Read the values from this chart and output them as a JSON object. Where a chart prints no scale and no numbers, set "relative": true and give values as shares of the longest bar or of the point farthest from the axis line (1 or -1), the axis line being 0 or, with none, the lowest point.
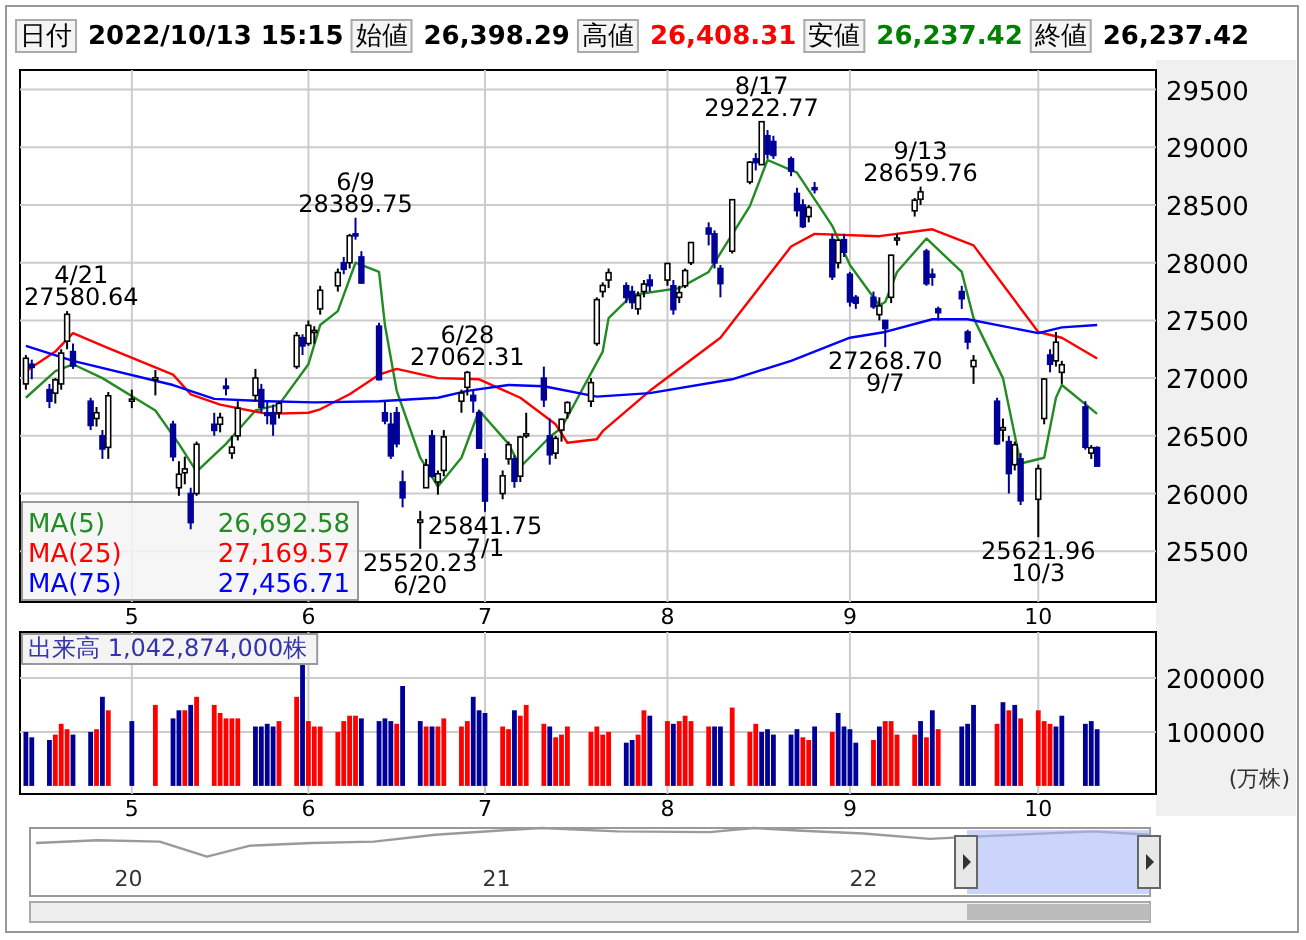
{
  "chart_data": [
    {
      "type": "candlestick",
      "x": [
        "2022-04-14",
        "2022-04-15",
        "2022-04-18",
        "2022-04-19",
        "2022-04-20",
        "2022-04-21",
        "2022-04-22",
        "2022-04-25",
        "2022-04-26",
        "2022-04-27",
        "2022-04-28",
        "2022-05-02",
        "2022-05-06",
        "2022-05-09",
        "2022-05-10",
        "2022-05-11",
        "2022-05-12",
        "2022-05-13",
        "2022-05-16",
        "2022-05-17",
        "2022-05-18",
        "2022-05-19",
        "2022-05-20",
        "2022-05-23",
        "2022-05-24",
        "2022-05-25",
        "2022-05-26",
        "2022-05-27",
        "2022-05-30",
        "2022-05-31",
        "2022-06-01",
        "2022-06-02",
        "2022-06-03",
        "2022-06-06",
        "2022-06-07",
        "2022-06-08",
        "2022-06-09",
        "2022-06-10",
        "2022-06-13",
        "2022-06-14",
        "2022-06-15",
        "2022-06-16",
        "2022-06-17",
        "2022-06-20",
        "2022-06-21",
        "2022-06-22",
        "2022-06-23",
        "2022-06-24",
        "2022-06-27",
        "2022-06-28",
        "2022-06-29",
        "2022-06-30",
        "2022-07-01",
        "2022-07-04",
        "2022-07-05",
        "2022-07-06",
        "2022-07-07",
        "2022-07-08",
        "2022-07-11",
        "2022-07-12",
        "2022-07-13",
        "2022-07-14",
        "2022-07-15",
        "2022-07-19",
        "2022-07-20",
        "2022-07-21",
        "2022-07-22",
        "2022-07-25",
        "2022-07-26",
        "2022-07-27",
        "2022-07-28",
        "2022-07-29",
        "2022-08-01",
        "2022-08-02",
        "2022-08-03",
        "2022-08-04",
        "2022-08-05",
        "2022-08-08",
        "2022-08-09",
        "2022-08-10",
        "2022-08-12",
        "2022-08-15",
        "2022-08-16",
        "2022-08-17",
        "2022-08-18",
        "2022-08-19",
        "2022-08-22",
        "2022-08-23",
        "2022-08-24",
        "2022-08-25",
        "2022-08-26",
        "2022-08-29",
        "2022-08-30",
        "2022-08-31",
        "2022-09-01",
        "2022-09-02",
        "2022-09-05",
        "2022-09-06",
        "2022-09-07",
        "2022-09-08",
        "2022-09-09",
        "2022-09-12",
        "2022-09-13",
        "2022-09-14",
        "2022-09-15",
        "2022-09-16",
        "2022-09-20",
        "2022-09-21",
        "2022-09-22",
        "2022-09-26",
        "2022-09-27",
        "2022-09-28",
        "2022-09-29",
        "2022-09-30",
        "2022-10-03",
        "2022-10-04",
        "2022-10-05",
        "2022-10-06",
        "2022-10-07",
        "2022-10-11",
        "2022-10-12",
        "2022-10-13"
      ],
      "ohlc": [
        [
          26950,
          27200,
          26900,
          27172
        ],
        [
          27120,
          27160,
          26990,
          27093
        ],
        [
          26900,
          26950,
          26740,
          26800
        ],
        [
          26870,
          27000,
          26780,
          26985
        ],
        [
          26950,
          27250,
          26900,
          27217
        ],
        [
          27320,
          27580.64,
          27250,
          27553
        ],
        [
          27230,
          27300,
          27080,
          27105
        ],
        [
          26800,
          26830,
          26550,
          26590
        ],
        [
          26650,
          26750,
          26580,
          26700
        ],
        [
          26500,
          26550,
          26300,
          26386
        ],
        [
          26400,
          26880,
          26300,
          26847
        ],
        [
          26800,
          26900,
          26740,
          26818
        ],
        [
          27000,
          27070,
          26850,
          27003
        ],
        [
          26600,
          26630,
          26280,
          26319
        ],
        [
          26050,
          26280,
          25980,
          26167
        ],
        [
          26180,
          26320,
          26080,
          26213
        ],
        [
          26000,
          26050,
          25690,
          25748
        ],
        [
          26000,
          26450,
          25980,
          26427
        ],
        [
          26600,
          26700,
          26500,
          26547
        ],
        [
          26600,
          26700,
          26530,
          26659
        ],
        [
          26930,
          27000,
          26850,
          26911
        ],
        [
          26350,
          26500,
          26300,
          26402
        ],
        [
          26500,
          26800,
          26460,
          26739
        ],
        [
          26850,
          27080,
          26800,
          27001
        ],
        [
          26900,
          26950,
          26700,
          26748
        ],
        [
          26700,
          26800,
          26600,
          26677
        ],
        [
          26700,
          26770,
          26500,
          26604
        ],
        [
          26700,
          26800,
          26650,
          26781
        ],
        [
          27100,
          27400,
          27080,
          27369
        ],
        [
          27350,
          27380,
          27200,
          27279
        ],
        [
          27300,
          27500,
          27280,
          27457
        ],
        [
          27400,
          27450,
          27300,
          27413
        ],
        [
          27600,
          27800,
          27550,
          27761
        ],
        [
          27800,
          27950,
          27750,
          27915
        ],
        [
          28000,
          28050,
          27900,
          27943
        ],
        [
          28000,
          28250,
          27950,
          28234
        ],
        [
          28250,
          28389.75,
          28200,
          28246
        ],
        [
          28050,
          28100,
          27820,
          27824
        ],
        [
          27450,
          27480,
          26980,
          26987
        ],
        [
          26700,
          26800,
          26600,
          26629
        ],
        [
          26600,
          26700,
          26300,
          26326
        ],
        [
          26700,
          26750,
          26400,
          26431
        ],
        [
          26100,
          26200,
          25880,
          25963
        ],
        [
          25750,
          25850,
          25520.23,
          25771
        ],
        [
          26050,
          26300,
          26050,
          26246
        ],
        [
          26500,
          26550,
          26140,
          26149
        ],
        [
          26100,
          26200,
          25990,
          26171
        ],
        [
          26200,
          26550,
          26150,
          26491
        ],
        [
          26800,
          26900,
          26700,
          26871
        ],
        [
          26920,
          27062.31,
          26850,
          27049
        ],
        [
          26850,
          26900,
          26700,
          26804
        ],
        [
          26700,
          26720,
          26390,
          26393
        ],
        [
          26300,
          26350,
          25841.75,
          25935
        ],
        [
          26000,
          26200,
          25950,
          26153
        ],
        [
          26300,
          26450,
          26250,
          26423
        ],
        [
          26300,
          26330,
          26050,
          26107
        ],
        [
          26150,
          26500,
          26100,
          26490
        ],
        [
          26500,
          26700,
          26480,
          26517
        ],
        [
          27000,
          27100,
          26750,
          26812
        ],
        [
          26500,
          26650,
          26250,
          26336
        ],
        [
          26350,
          26500,
          26300,
          26478
        ],
        [
          26550,
          26650,
          26450,
          26643
        ],
        [
          26700,
          26800,
          26650,
          26788
        ],
        [
          26800,
          27000,
          26750,
          26961
        ],
        [
          27300,
          27700,
          27280,
          27680
        ],
        [
          27750,
          27830,
          27700,
          27803
        ],
        [
          27850,
          27950,
          27780,
          27914
        ],
        [
          27800,
          27830,
          27650,
          27699
        ],
        [
          27750,
          27800,
          27600,
          27655
        ],
        [
          27600,
          27750,
          27550,
          27715
        ],
        [
          27750,
          27850,
          27700,
          27815
        ],
        [
          27850,
          27900,
          27750,
          27801
        ],
        [
          27850,
          28000,
          27800,
          27993
        ],
        [
          27800,
          27850,
          27550,
          27594
        ],
        [
          27700,
          27800,
          27650,
          27741
        ],
        [
          27800,
          27950,
          27780,
          27932
        ],
        [
          28000,
          28180,
          27980,
          28175
        ],
        [
          28300,
          28350,
          28150,
          28249
        ],
        [
          28250,
          28280,
          27950,
          27999
        ],
        [
          27950,
          27980,
          27700,
          27819
        ],
        [
          28100,
          28550,
          28080,
          28546
        ],
        [
          28700,
          28880,
          28680,
          28871
        ],
        [
          28900,
          28950,
          28800,
          28868
        ],
        [
          28850,
          29222.77,
          28850,
          29222
        ],
        [
          29100,
          29150,
          28900,
          28942
        ],
        [
          29050,
          29100,
          28900,
          28930
        ],
        [
          28900,
          28920,
          28750,
          28794
        ],
        [
          28600,
          28650,
          28400,
          28452
        ],
        [
          28500,
          28550,
          28300,
          28313
        ],
        [
          28400,
          28500,
          28350,
          28479
        ],
        [
          28650,
          28700,
          28600,
          28641
        ],
        [
          28200,
          28250,
          27850,
          27878
        ],
        [
          28000,
          28200,
          27950,
          28195
        ],
        [
          28200,
          28250,
          28050,
          28091
        ],
        [
          27900,
          27920,
          27620,
          27661
        ],
        [
          27700,
          27720,
          27600,
          27650
        ],
        [
          27700,
          27750,
          27600,
          27619
        ],
        [
          27550,
          27700,
          27500,
          27626
        ],
        [
          27500,
          27500,
          27268.7,
          27430
        ],
        [
          27700,
          28070,
          27650,
          28065
        ],
        [
          28200,
          28250,
          28150,
          28214
        ],
        [
          28450,
          28560,
          28400,
          28542
        ],
        [
          28550,
          28659.76,
          28500,
          28614
        ],
        [
          28100,
          28120,
          27800,
          27818
        ],
        [
          27900,
          27950,
          27800,
          27875
        ],
        [
          27600,
          27620,
          27500,
          27567
        ],
        [
          27750,
          27800,
          27600,
          27688
        ],
        [
          27400,
          27420,
          27250,
          27313
        ],
        [
          27100,
          27200,
          26950,
          27153
        ],
        [
          26800,
          26830,
          26420,
          26431
        ],
        [
          26550,
          26650,
          26450,
          26571
        ],
        [
          26450,
          26500,
          26000,
          26173
        ],
        [
          26250,
          26450,
          26200,
          26422
        ],
        [
          26300,
          26350,
          25900,
          25937
        ],
        [
          25950,
          26250,
          25621.96,
          26215
        ],
        [
          26650,
          27000,
          26600,
          26992
        ],
        [
          27200,
          27250,
          27050,
          27120
        ],
        [
          27150,
          27400,
          27100,
          27311
        ],
        [
          27050,
          27150,
          26950,
          27116
        ],
        [
          26750,
          26800,
          26380,
          26401
        ],
        [
          26350,
          26420,
          26300,
          26396
        ],
        [
          26398.29,
          26408.31,
          26237.42,
          26237.42
        ]
      ],
      "series": [
        {
          "type": "line",
          "name": "MA(5)",
          "color": "#228b22",
          "x": [
            "2022-04-14",
            "2022-04-19",
            "2022-04-22",
            "2022-04-27",
            "2022-05-06",
            "2022-05-10",
            "2022-05-13",
            "2022-05-18",
            "2022-05-23",
            "2022-05-27",
            "2022-06-01",
            "2022-06-02",
            "2022-06-03",
            "2022-06-06",
            "2022-06-09",
            "2022-06-13",
            "2022-06-14",
            "2022-06-16",
            "2022-06-20",
            "2022-06-23",
            "2022-06-27",
            "2022-06-30",
            "2022-07-05",
            "2022-07-07",
            "2022-07-12",
            "2022-07-14",
            "2022-07-21",
            "2022-07-22",
            "2022-07-26",
            "2022-08-03",
            "2022-08-08",
            "2022-08-15",
            "2022-08-18",
            "2022-08-23",
            "2022-08-29",
            "2022-09-01",
            "2022-09-06",
            "2022-09-07",
            "2022-09-09",
            "2022-09-14",
            "2022-09-20",
            "2022-09-22",
            "2022-09-27",
            "2022-09-30",
            "2022-10-04",
            "2022-10-06",
            "2022-10-07",
            "2022-10-13"
          ],
          "values": [
            26830,
            27060,
            27120,
            27000,
            26720,
            26430,
            26190,
            26430,
            26720,
            26770,
            27120,
            27290,
            27460,
            27580,
            28000,
            27920,
            27460,
            26890,
            26310,
            26060,
            26310,
            26720,
            26430,
            26230,
            26490,
            26570,
            27230,
            27520,
            27720,
            27780,
            27920,
            28490,
            28890,
            28780,
            28320,
            27980,
            27630,
            27660,
            27920,
            28210,
            27920,
            27520,
            27000,
            26260,
            26310,
            26830,
            26940,
            26690
          ]
        },
        {
          "type": "line",
          "name": "MA(25)",
          "color": "#ff0000",
          "x": [
            "2022-04-14",
            "2022-04-19",
            "2022-04-22",
            "2022-04-28",
            "2022-05-09",
            "2022-05-12",
            "2022-05-17",
            "2022-05-25",
            "2022-06-01",
            "2022-06-03",
            "2022-06-08",
            "2022-06-13",
            "2022-06-16",
            "2022-06-23",
            "2022-06-30",
            "2022-07-07",
            "2022-07-13",
            "2022-07-15",
            "2022-07-20",
            "2022-07-21",
            "2022-07-29",
            "2022-08-10",
            "2022-08-22",
            "2022-08-26",
            "2022-09-06",
            "2022-09-15",
            "2022-09-22",
            "2022-10-03",
            "2022-10-07",
            "2022-10-13"
          ],
          "values": [
            27060,
            27230,
            27390,
            27260,
            27030,
            26860,
            26770,
            26690,
            26700,
            26730,
            26860,
            27030,
            27080,
            27000,
            26990,
            26830,
            26600,
            26440,
            26470,
            26540,
            26890,
            27350,
            28140,
            28250,
            28230,
            28290,
            28150,
            27400,
            27350,
            27170
          ]
        },
        {
          "type": "line",
          "name": "MA(75)",
          "color": "#0000ff",
          "x": [
            "2022-04-14",
            "2022-04-22",
            "2022-05-09",
            "2022-05-16",
            "2022-05-25",
            "2022-06-02",
            "2022-06-13",
            "2022-06-23",
            "2022-06-28",
            "2022-07-05",
            "2022-07-11",
            "2022-07-20",
            "2022-07-29",
            "2022-08-12",
            "2022-08-22",
            "2022-09-01",
            "2022-09-07",
            "2022-09-15",
            "2022-09-21",
            "2022-10-03",
            "2022-10-07",
            "2022-10-13"
          ],
          "values": [
            27280,
            27150,
            26940,
            26820,
            26800,
            26790,
            26800,
            26830,
            26890,
            26940,
            26930,
            26840,
            26870,
            26990,
            27150,
            27350,
            27400,
            27510,
            27510,
            27390,
            27440,
            27460
          ]
        }
      ],
      "xlim": [
        "2022-04-13",
        "2022-10-23"
      ],
      "ylim": [
        25060,
        29670
      ],
      "yticks": [
        25500,
        26000,
        26500,
        27000,
        27500,
        28000,
        28500,
        29000,
        29500
      ],
      "xticks": [
        {
          "value": "2022-05-02",
          "label": "5"
        },
        {
          "value": "2022-06-01",
          "label": "6"
        },
        {
          "value": "2022-07-01",
          "label": "7"
        },
        {
          "value": "2022-08-01",
          "label": "8"
        },
        {
          "value": "2022-09-01",
          "label": "9"
        },
        {
          "value": "2022-10-03",
          "label": "10"
        }
      ],
      "grid": true,
      "legend": "bottom left",
      "annotations": [
        "日付",
        "2022/10/13 15:15",
        "始値",
        "26,398.29",
        "高値",
        "26,408.31",
        "安値",
        "26,237.42",
        "終値",
        "26,237.42",
        "26,692.58",
        "27,169.57",
        "27,456.71",
        {
          "text": "4/21\n27580.64",
          "x": "2022-04-21",
          "y": 27580.64
        },
        {
          "text": "6/9\n28389.75",
          "x": "2022-06-09",
          "y": 28389.75
        },
        {
          "text": "25520.23\n6/20",
          "x": "2022-06-20",
          "y": 25520.23
        },
        {
          "text": "6/28\n27062.31",
          "x": "2022-06-28",
          "y": 27062.31
        },
        {
          "text": "25841.75\n7/1",
          "x": "2022-07-01",
          "y": 25841.75
        },
        {
          "text": "8/17\n29222.77",
          "x": "2022-08-17",
          "y": 29222.77
        },
        {
          "text": "27268.70\n9/7",
          "x": "2022-09-07",
          "y": 27268.7
        },
        {
          "text": "9/13\n28659.76",
          "x": "2022-09-13",
          "y": 28659.76
        },
        {
          "text": "25621.96\n10/3",
          "x": "2022-10-03",
          "y": 25621.96
        }
      ]
    },
    {
      "type": "bar",
      "title": "出来高 1,042,874,000株",
      "ylabel": "(万株)",
      "x": [
        "2022-04-14",
        "2022-04-15",
        "2022-04-18",
        "2022-04-19",
        "2022-04-20",
        "2022-04-21",
        "2022-04-22",
        "2022-04-25",
        "2022-04-26",
        "2022-04-27",
        "2022-04-28",
        "2022-05-02",
        "2022-05-06",
        "2022-05-09",
        "2022-05-10",
        "2022-05-11",
        "2022-05-12",
        "2022-05-13",
        "2022-05-16",
        "2022-05-17",
        "2022-05-18",
        "2022-05-19",
        "2022-05-20",
        "2022-05-23",
        "2022-05-24",
        "2022-05-25",
        "2022-05-26",
        "2022-05-27",
        "2022-05-30",
        "2022-05-31",
        "2022-06-01",
        "2022-06-02",
        "2022-06-03",
        "2022-06-06",
        "2022-06-07",
        "2022-06-08",
        "2022-06-09",
        "2022-06-10",
        "2022-06-13",
        "2022-06-14",
        "2022-06-15",
        "2022-06-16",
        "2022-06-17",
        "2022-06-20",
        "2022-06-21",
        "2022-06-22",
        "2022-06-23",
        "2022-06-24",
        "2022-06-27",
        "2022-06-28",
        "2022-06-29",
        "2022-06-30",
        "2022-07-01",
        "2022-07-04",
        "2022-07-05",
        "2022-07-06",
        "2022-07-07",
        "2022-07-08",
        "2022-07-11",
        "2022-07-12",
        "2022-07-13",
        "2022-07-14",
        "2022-07-15",
        "2022-07-19",
        "2022-07-20",
        "2022-07-21",
        "2022-07-22",
        "2022-07-25",
        "2022-07-26",
        "2022-07-27",
        "2022-07-28",
        "2022-07-29",
        "2022-08-01",
        "2022-08-02",
        "2022-08-03",
        "2022-08-04",
        "2022-08-05",
        "2022-08-08",
        "2022-08-09",
        "2022-08-10",
        "2022-08-12",
        "2022-08-15",
        "2022-08-16",
        "2022-08-17",
        "2022-08-18",
        "2022-08-19",
        "2022-08-22",
        "2022-08-23",
        "2022-08-24",
        "2022-08-25",
        "2022-08-26",
        "2022-08-29",
        "2022-08-30",
        "2022-08-31",
        "2022-09-01",
        "2022-09-02",
        "2022-09-05",
        "2022-09-06",
        "2022-09-07",
        "2022-09-08",
        "2022-09-09",
        "2022-09-12",
        "2022-09-13",
        "2022-09-14",
        "2022-09-15",
        "2022-09-16",
        "2022-09-20",
        "2022-09-21",
        "2022-09-22",
        "2022-09-26",
        "2022-09-27",
        "2022-09-28",
        "2022-09-29",
        "2022-09-30",
        "2022-10-03",
        "2022-10-04",
        "2022-10-05",
        "2022-10-06",
        "2022-10-07",
        "2022-10-11",
        "2022-10-12",
        "2022-10-13"
      ],
      "values": [
        100000,
        90000,
        85000,
        95000,
        115000,
        105000,
        95000,
        100000,
        105000,
        165000,
        140000,
        120000,
        150000,
        125000,
        140000,
        140000,
        150000,
        165000,
        150000,
        135000,
        125000,
        125000,
        125000,
        110000,
        110000,
        115000,
        110000,
        120000,
        165000,
        230000,
        120000,
        110000,
        110000,
        100000,
        120000,
        130000,
        130000,
        125000,
        120000,
        125000,
        120000,
        115000,
        185000,
        120000,
        110000,
        110000,
        110000,
        125000,
        110000,
        120000,
        165000,
        140000,
        135000,
        110000,
        105000,
        140000,
        130000,
        150000,
        115000,
        110000,
        90000,
        95000,
        110000,
        100000,
        110000,
        95000,
        100000,
        80000,
        85000,
        95000,
        140000,
        130000,
        120000,
        115000,
        120000,
        130000,
        120000,
        110000,
        110000,
        110000,
        145000,
        100000,
        115000,
        100000,
        105000,
        95000,
        95000,
        105000,
        90000,
        85000,
        110000,
        100000,
        135000,
        110000,
        105000,
        80000,
        85000,
        110000,
        120000,
        120000,
        95000,
        95000,
        120000,
        90000,
        140000,
        105000,
        110000,
        115000,
        150000,
        115000,
        155000,
        140000,
        150000,
        125000,
        140000,
        120000,
        115000,
        110000,
        130000,
        115000,
        120000,
        105000
      ],
      "colors": [
        "#000099",
        "#000099",
        "#000099",
        "#ff0000",
        "#ff0000",
        "#ff0000",
        "#000099",
        "#000099",
        "#ff0000",
        "#000099",
        "#ff0000",
        "#000099",
        "#ff0000",
        "#000099",
        "#000099",
        "#ff0000",
        "#000099",
        "#ff0000",
        "#ff0000",
        "#ff0000",
        "#ff0000",
        "#ff0000",
        "#ff0000",
        "#000099",
        "#000099",
        "#000099",
        "#000099",
        "#ff0000",
        "#ff0000",
        "#000099",
        "#ff0000",
        "#ff0000",
        "#ff0000",
        "#ff0000",
        "#ff0000",
        "#ff0000",
        "#ff0000",
        "#000099",
        "#000099",
        "#000099",
        "#000099",
        "#ff0000",
        "#000099",
        "#000099",
        "#ff0000",
        "#000099",
        "#ff0000",
        "#ff0000",
        "#ff0000",
        "#ff0000",
        "#000099",
        "#000099",
        "#000099",
        "#ff0000",
        "#ff0000",
        "#000099",
        "#ff0000",
        "#ff0000",
        "#ff0000",
        "#000099",
        "#ff0000",
        "#ff0000",
        "#ff0000",
        "#ff0000",
        "#ff0000",
        "#ff0000",
        "#ff0000",
        "#000099",
        "#000099",
        "#ff0000",
        "#ff0000",
        "#000099",
        "#ff0000",
        "#000099",
        "#ff0000",
        "#ff0000",
        "#ff0000",
        "#ff0000",
        "#000099",
        "#000099",
        "#ff0000",
        "#ff0000",
        "#ff0000",
        "#000099",
        "#000099",
        "#000099",
        "#000099",
        "#000099",
        "#ff0000",
        "#ff0000",
        "#000099",
        "#ff0000",
        "#000099",
        "#000099",
        "#000099",
        "#000099",
        "#ff0000",
        "#000099",
        "#ff0000",
        "#ff0000",
        "#ff0000",
        "#ff0000",
        "#000099",
        "#ff0000",
        "#000099",
        "#ff0000",
        "#000099",
        "#000099",
        "#000099",
        "#ff0000",
        "#000099",
        "#ff0000",
        "#000099",
        "#ff0000",
        "#ff0000",
        "#ff0000",
        "#ff0000",
        "#000099",
        "#000099",
        "#000099",
        "#000099",
        "#000099"
      ],
      "xlim": [
        "2022-04-13",
        "2022-10-23"
      ],
      "ylim": [
        -15000,
        285000
      ],
      "yticks": [
        100000,
        200000
      ],
      "xticks": [
        {
          "value": "2022-05-02",
          "label": "5"
        },
        {
          "value": "2022-06-01",
          "label": "6"
        },
        {
          "value": "2022-07-01",
          "label": "7"
        },
        {
          "value": "2022-08-01",
          "label": "8"
        },
        {
          "value": "2022-09-01",
          "label": "9"
        },
        {
          "value": "2022-10-03",
          "label": "10"
        }
      ],
      "grid": true
    },
    {
      "type": "line",
      "relative": true,
      "x": [
        "2019-10-01",
        "2019-12-01",
        "2020-02-01",
        "2020-03-19",
        "2020-05-01",
        "2020-07-01",
        "2020-09-01",
        "2020-11-01",
        "2021-01-01",
        "2021-02-15",
        "2021-05-01",
        "2021-08-01",
        "2021-09-14",
        "2021-11-01",
        "2022-01-01",
        "2022-03-08",
        "2022-05-01",
        "2022-08-17",
        "2022-10-13"
      ],
      "series": [
        {
          "color": "#9a9a9a",
          "values": [
            0.78,
            0.82,
            0.8,
            0.58,
            0.74,
            0.78,
            0.8,
            0.9,
            0.96,
            1.0,
            0.95,
            0.94,
            1.0,
            0.96,
            0.92,
            0.84,
            0.88,
            0.95,
            0.9
          ]
        }
      ],
      "xlim": [
        "2019-09-25",
        "2022-10-13"
      ],
      "xticks": [
        {
          "value": "2020-01-01",
          "label": "20"
        },
        {
          "value": "2021-01-01",
          "label": "21"
        },
        {
          "value": "2022-01-01",
          "label": "22"
        }
      ],
      "bands": [
        {
          "axis": "x",
          "from": "2022-04-14",
          "to": "2022-10-13",
          "color": "#a8b8f8"
        }
      ]
    }
  ]
}
